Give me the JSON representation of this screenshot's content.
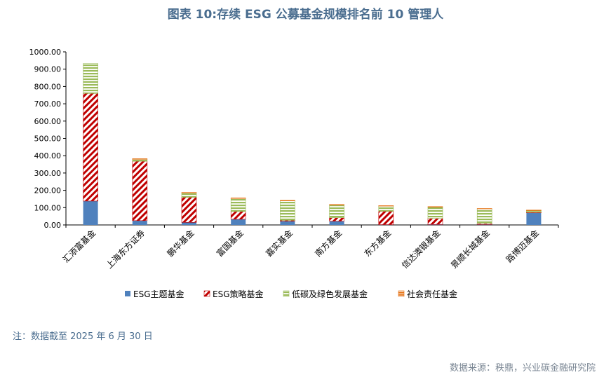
{
  "title": "图表 10:存续 ESG 公募基金规模排名前 10 管理人",
  "note": "注：数据截至 2025 年 6 月 30 日",
  "source": "数据来源：秩鼎，兴业碳金融研究院",
  "chart_data": {
    "type": "bar",
    "stacked": true,
    "categories": [
      "汇添富基金",
      "上海东方证券",
      "鹏华基金",
      "富国基金",
      "嘉实基金",
      "南方基金",
      "东方基金",
      "信达澳银基金",
      "景顺长城基金",
      "路博迈基金"
    ],
    "ylim": [
      0,
      1000
    ],
    "yticks": [
      "0.00",
      "100.00",
      "200.00",
      "300.00",
      "400.00",
      "500.00",
      "600.00",
      "700.00",
      "800.00",
      "900.00",
      "1000.00"
    ],
    "legend_position": "bottom",
    "series": [
      {
        "name": "ESG主题基金",
        "color": "#4f81bd",
        "pattern": "solid",
        "values": [
          138,
          25,
          15,
          33,
          22,
          22,
          2,
          3,
          3,
          70
        ]
      },
      {
        "name": "ESG策略基金",
        "color": "#c00000",
        "pattern": "hatch",
        "values": [
          622,
          343,
          145,
          45,
          5,
          20,
          77,
          35,
          5,
          3
        ]
      },
      {
        "name": "低碳及绿色发展基金",
        "color": "#9bbb59",
        "pattern": "lines",
        "values": [
          173,
          10,
          25,
          75,
          112,
          73,
          30,
          65,
          85,
          10
        ]
      },
      {
        "name": "社会责任基金",
        "color": "#e46c0a",
        "pattern": "lines",
        "values": [
          0,
          5,
          3,
          3,
          3,
          3,
          3,
          3,
          2,
          3
        ]
      }
    ]
  }
}
